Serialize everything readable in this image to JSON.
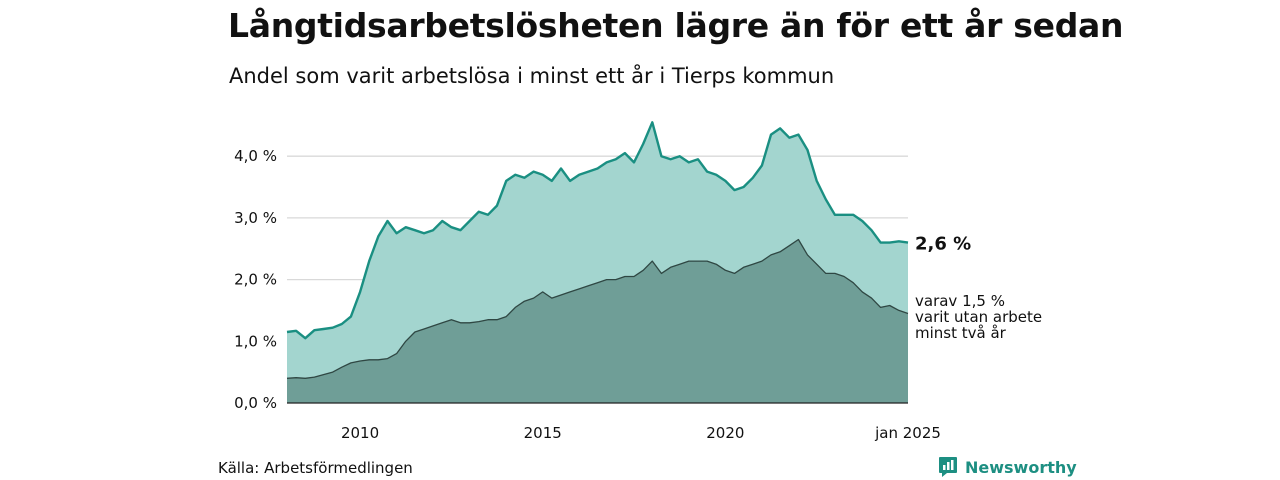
{
  "title": "Långtidsarbetslösheten lägre än för ett år sedan",
  "subtitle": "Andel som varit arbetslösa i minst ett år i Tierps kommun",
  "source": "Källa: Arbetsförmedlingen",
  "brand": "Newsworthy",
  "colors": {
    "total_fill": "#a3d5cf",
    "total_line": "#1a8f82",
    "long_fill": "#6f9e97",
    "long_line": "#2f4743",
    "grid": "#d9d9d9"
  },
  "chart_data": {
    "type": "area",
    "x_start": "2008-01",
    "x_end": "2025-01",
    "x_ticks": [
      {
        "value": 2010,
        "label": "2010"
      },
      {
        "value": 2015,
        "label": "2015"
      },
      {
        "value": 2020,
        "label": "2020"
      },
      {
        "value": 2025,
        "label": "jan 2025"
      }
    ],
    "y_ticks": [
      {
        "value": 0,
        "label": "0,0 %"
      },
      {
        "value": 1,
        "label": "1,0 %"
      },
      {
        "value": 2,
        "label": "2,0 %"
      },
      {
        "value": 3,
        "label": "3,0 %"
      },
      {
        "value": 4,
        "label": "4,0 %"
      }
    ],
    "ylim": [
      0,
      4.7
    ],
    "grid": true,
    "series": [
      {
        "key": "total",
        "end_label": "2,6 %",
        "points": [
          [
            2008.0,
            1.15
          ],
          [
            2008.25,
            1.17
          ],
          [
            2008.5,
            1.05
          ],
          [
            2008.75,
            1.18
          ],
          [
            2009.0,
            1.2
          ],
          [
            2009.25,
            1.22
          ],
          [
            2009.5,
            1.28
          ],
          [
            2009.75,
            1.4
          ],
          [
            2010.0,
            1.8
          ],
          [
            2010.25,
            2.3
          ],
          [
            2010.5,
            2.7
          ],
          [
            2010.75,
            2.95
          ],
          [
            2011.0,
            2.75
          ],
          [
            2011.25,
            2.85
          ],
          [
            2011.5,
            2.8
          ],
          [
            2011.75,
            2.75
          ],
          [
            2012.0,
            2.8
          ],
          [
            2012.25,
            2.95
          ],
          [
            2012.5,
            2.85
          ],
          [
            2012.75,
            2.8
          ],
          [
            2013.0,
            2.95
          ],
          [
            2013.25,
            3.1
          ],
          [
            2013.5,
            3.05
          ],
          [
            2013.75,
            3.2
          ],
          [
            2014.0,
            3.6
          ],
          [
            2014.25,
            3.7
          ],
          [
            2014.5,
            3.65
          ],
          [
            2014.75,
            3.75
          ],
          [
            2015.0,
            3.7
          ],
          [
            2015.25,
            3.6
          ],
          [
            2015.5,
            3.8
          ],
          [
            2015.75,
            3.6
          ],
          [
            2016.0,
            3.7
          ],
          [
            2016.25,
            3.75
          ],
          [
            2016.5,
            3.8
          ],
          [
            2016.75,
            3.9
          ],
          [
            2017.0,
            3.95
          ],
          [
            2017.25,
            4.05
          ],
          [
            2017.5,
            3.9
          ],
          [
            2017.75,
            4.2
          ],
          [
            2018.0,
            4.55
          ],
          [
            2018.25,
            4.0
          ],
          [
            2018.5,
            3.95
          ],
          [
            2018.75,
            4.0
          ],
          [
            2019.0,
            3.9
          ],
          [
            2019.25,
            3.95
          ],
          [
            2019.5,
            3.75
          ],
          [
            2019.75,
            3.7
          ],
          [
            2020.0,
            3.6
          ],
          [
            2020.25,
            3.45
          ],
          [
            2020.5,
            3.5
          ],
          [
            2020.75,
            3.65
          ],
          [
            2021.0,
            3.85
          ],
          [
            2021.25,
            4.35
          ],
          [
            2021.5,
            4.45
          ],
          [
            2021.75,
            4.3
          ],
          [
            2022.0,
            4.35
          ],
          [
            2022.25,
            4.1
          ],
          [
            2022.5,
            3.6
          ],
          [
            2022.75,
            3.3
          ],
          [
            2023.0,
            3.05
          ],
          [
            2023.25,
            3.05
          ],
          [
            2023.5,
            3.05
          ],
          [
            2023.75,
            2.95
          ],
          [
            2024.0,
            2.8
          ],
          [
            2024.25,
            2.6
          ],
          [
            2024.5,
            2.6
          ],
          [
            2024.75,
            2.62
          ],
          [
            2025.0,
            2.6
          ]
        ]
      },
      {
        "key": "long",
        "end_label": [
          "varav 1,5 %",
          "varit utan arbete",
          "minst två år"
        ],
        "points": [
          [
            2008.0,
            0.4
          ],
          [
            2008.25,
            0.41
          ],
          [
            2008.5,
            0.4
          ],
          [
            2008.75,
            0.42
          ],
          [
            2009.0,
            0.46
          ],
          [
            2009.25,
            0.5
          ],
          [
            2009.5,
            0.58
          ],
          [
            2009.75,
            0.65
          ],
          [
            2010.0,
            0.68
          ],
          [
            2010.25,
            0.7
          ],
          [
            2010.5,
            0.7
          ],
          [
            2010.75,
            0.72
          ],
          [
            2011.0,
            0.8
          ],
          [
            2011.25,
            1.0
          ],
          [
            2011.5,
            1.15
          ],
          [
            2011.75,
            1.2
          ],
          [
            2012.0,
            1.25
          ],
          [
            2012.25,
            1.3
          ],
          [
            2012.5,
            1.35
          ],
          [
            2012.75,
            1.3
          ],
          [
            2013.0,
            1.3
          ],
          [
            2013.25,
            1.32
          ],
          [
            2013.5,
            1.35
          ],
          [
            2013.75,
            1.35
          ],
          [
            2014.0,
            1.4
          ],
          [
            2014.25,
            1.55
          ],
          [
            2014.5,
            1.65
          ],
          [
            2014.75,
            1.7
          ],
          [
            2015.0,
            1.8
          ],
          [
            2015.25,
            1.7
          ],
          [
            2015.5,
            1.75
          ],
          [
            2015.75,
            1.8
          ],
          [
            2016.0,
            1.85
          ],
          [
            2016.25,
            1.9
          ],
          [
            2016.5,
            1.95
          ],
          [
            2016.75,
            2.0
          ],
          [
            2017.0,
            2.0
          ],
          [
            2017.25,
            2.05
          ],
          [
            2017.5,
            2.05
          ],
          [
            2017.75,
            2.15
          ],
          [
            2018.0,
            2.3
          ],
          [
            2018.25,
            2.1
          ],
          [
            2018.5,
            2.2
          ],
          [
            2018.75,
            2.25
          ],
          [
            2019.0,
            2.3
          ],
          [
            2019.25,
            2.3
          ],
          [
            2019.5,
            2.3
          ],
          [
            2019.75,
            2.25
          ],
          [
            2020.0,
            2.15
          ],
          [
            2020.25,
            2.1
          ],
          [
            2020.5,
            2.2
          ],
          [
            2020.75,
            2.25
          ],
          [
            2021.0,
            2.3
          ],
          [
            2021.25,
            2.4
          ],
          [
            2021.5,
            2.45
          ],
          [
            2021.75,
            2.55
          ],
          [
            2022.0,
            2.65
          ],
          [
            2022.25,
            2.4
          ],
          [
            2022.5,
            2.25
          ],
          [
            2022.75,
            2.1
          ],
          [
            2023.0,
            2.1
          ],
          [
            2023.25,
            2.05
          ],
          [
            2023.5,
            1.95
          ],
          [
            2023.75,
            1.8
          ],
          [
            2024.0,
            1.7
          ],
          [
            2024.25,
            1.55
          ],
          [
            2024.5,
            1.58
          ],
          [
            2024.75,
            1.5
          ],
          [
            2025.0,
            1.45
          ]
        ]
      }
    ]
  }
}
